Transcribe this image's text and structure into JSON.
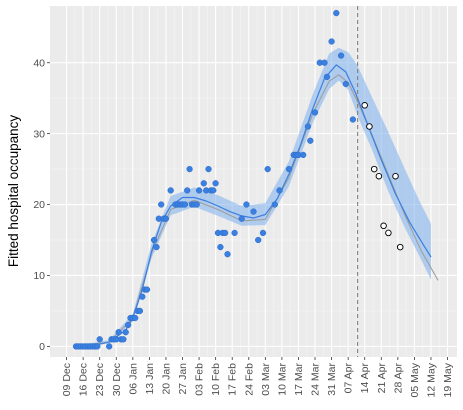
{
  "chart_data": {
    "type": "scatter",
    "ylabel": "Fitted hospital occupancy",
    "xlabel": "",
    "x_axis": {
      "type": "date",
      "range": [
        "2020-12-02",
        "2021-05-23"
      ],
      "ticks": [
        {
          "date": "2020-12-09",
          "label": "09 Dec"
        },
        {
          "date": "2020-12-16",
          "label": "16 Dec"
        },
        {
          "date": "2020-12-23",
          "label": "23 Dec"
        },
        {
          "date": "2020-12-30",
          "label": "30 Dec"
        },
        {
          "date": "2021-01-06",
          "label": "06 Jan"
        },
        {
          "date": "2021-01-13",
          "label": "13 Jan"
        },
        {
          "date": "2021-01-20",
          "label": "20 Jan"
        },
        {
          "date": "2021-01-27",
          "label": "27 Jan"
        },
        {
          "date": "2021-02-03",
          "label": "03 Feb"
        },
        {
          "date": "2021-02-10",
          "label": "10 Feb"
        },
        {
          "date": "2021-02-17",
          "label": "17 Feb"
        },
        {
          "date": "2021-02-24",
          "label": "24 Feb"
        },
        {
          "date": "2021-03-03",
          "label": "03 Mar"
        },
        {
          "date": "2021-03-10",
          "label": "10 Mar"
        },
        {
          "date": "2021-03-17",
          "label": "17 Mar"
        },
        {
          "date": "2021-03-24",
          "label": "24 Mar"
        },
        {
          "date": "2021-03-31",
          "label": "31 Mar"
        },
        {
          "date": "2021-04-07",
          "label": "07 Apr"
        },
        {
          "date": "2021-04-14",
          "label": "14 Apr"
        },
        {
          "date": "2021-04-21",
          "label": "21 Apr"
        },
        {
          "date": "2021-04-28",
          "label": "28 Apr"
        },
        {
          "date": "2021-05-05",
          "label": "05 May"
        },
        {
          "date": "2021-05-12",
          "label": "12 May"
        },
        {
          "date": "2021-05-19",
          "label": "19 May"
        }
      ]
    },
    "y_axis": {
      "range": [
        -1.5,
        48
      ],
      "ticks": [
        {
          "value": 0,
          "label": "0"
        },
        {
          "value": 10,
          "label": "10"
        },
        {
          "value": 20,
          "label": "20"
        },
        {
          "value": 30,
          "label": "30"
        },
        {
          "value": 40,
          "label": "40"
        }
      ]
    },
    "grid": true,
    "legend": "none",
    "vline": {
      "x": "2021-04-11",
      "style": "dashed",
      "color": "#808080"
    },
    "observed_points": {
      "color": "#3b7fe0",
      "points": [
        [
          "2020-12-13",
          0
        ],
        [
          "2020-12-14",
          0
        ],
        [
          "2020-12-15",
          0
        ],
        [
          "2020-12-16",
          0
        ],
        [
          "2020-12-17",
          0
        ],
        [
          "2020-12-18",
          0
        ],
        [
          "2020-12-19",
          0
        ],
        [
          "2020-12-20",
          0
        ],
        [
          "2020-12-21",
          0
        ],
        [
          "2020-12-22",
          0
        ],
        [
          "2020-12-23",
          1
        ],
        [
          "2020-12-27",
          0
        ],
        [
          "2020-12-28",
          1
        ],
        [
          "2020-12-29",
          1
        ],
        [
          "2020-12-30",
          1
        ],
        [
          "2020-12-31",
          2
        ],
        [
          "2021-01-01",
          1
        ],
        [
          "2021-01-02",
          1
        ],
        [
          "2021-01-03",
          2
        ],
        [
          "2021-01-04",
          3
        ],
        [
          "2021-01-05",
          4
        ],
        [
          "2021-01-06",
          4
        ],
        [
          "2021-01-07",
          4
        ],
        [
          "2021-01-08",
          5
        ],
        [
          "2021-01-09",
          5
        ],
        [
          "2021-01-10",
          7
        ],
        [
          "2021-01-11",
          8
        ],
        [
          "2021-01-12",
          8
        ],
        [
          "2021-01-15",
          15
        ],
        [
          "2021-01-16",
          14
        ],
        [
          "2021-01-17",
          18
        ],
        [
          "2021-01-18",
          20
        ],
        [
          "2021-01-19",
          18
        ],
        [
          "2021-01-20",
          18
        ],
        [
          "2021-01-22",
          22
        ],
        [
          "2021-01-24",
          20
        ],
        [
          "2021-01-25",
          20
        ],
        [
          "2021-01-26",
          20
        ],
        [
          "2021-01-27",
          20
        ],
        [
          "2021-01-28",
          20
        ],
        [
          "2021-01-29",
          22
        ],
        [
          "2021-01-30",
          25
        ],
        [
          "2021-01-31",
          20
        ],
        [
          "2021-02-01",
          20
        ],
        [
          "2021-02-02",
          20
        ],
        [
          "2021-02-03",
          22
        ],
        [
          "2021-02-05",
          23
        ],
        [
          "2021-02-06",
          22
        ],
        [
          "2021-02-07",
          25
        ],
        [
          "2021-02-08",
          22
        ],
        [
          "2021-02-09",
          22
        ],
        [
          "2021-02-10",
          23
        ],
        [
          "2021-02-11",
          16
        ],
        [
          "2021-02-12",
          14
        ],
        [
          "2021-02-13",
          16
        ],
        [
          "2021-02-14",
          16
        ],
        [
          "2021-02-15",
          13
        ],
        [
          "2021-02-18",
          16
        ],
        [
          "2021-02-21",
          18
        ],
        [
          "2021-02-23",
          20
        ],
        [
          "2021-02-26",
          19
        ],
        [
          "2021-02-28",
          15
        ],
        [
          "2021-03-02",
          16
        ],
        [
          "2021-03-04",
          25
        ],
        [
          "2021-03-07",
          20
        ],
        [
          "2021-03-09",
          22
        ],
        [
          "2021-03-13",
          25
        ],
        [
          "2021-03-15",
          27
        ],
        [
          "2021-03-16",
          27
        ],
        [
          "2021-03-17",
          27
        ],
        [
          "2021-03-19",
          27
        ],
        [
          "2021-03-21",
          31
        ],
        [
          "2021-03-22",
          29
        ],
        [
          "2021-03-24",
          33
        ],
        [
          "2021-03-26",
          40
        ],
        [
          "2021-03-28",
          40
        ],
        [
          "2021-03-29",
          38
        ],
        [
          "2021-03-31",
          43
        ],
        [
          "2021-04-02",
          47
        ],
        [
          "2021-04-04",
          41
        ],
        [
          "2021-04-06",
          37
        ],
        [
          "2021-04-09",
          32
        ]
      ]
    },
    "holdout_points": {
      "fill": "#ffffff",
      "stroke": "#000000",
      "points": [
        [
          "2021-04-14",
          34
        ],
        [
          "2021-04-16",
          31
        ],
        [
          "2021-04-18",
          25
        ],
        [
          "2021-04-20",
          24
        ],
        [
          "2021-04-22",
          17
        ],
        [
          "2021-04-24",
          16
        ],
        [
          "2021-04-27",
          24
        ],
        [
          "2021-04-29",
          14
        ]
      ]
    },
    "fit_line": {
      "color": "#3b7fe0",
      "points": [
        [
          "2020-12-13",
          0
        ],
        [
          "2020-12-20",
          0.1
        ],
        [
          "2020-12-27",
          0.6
        ],
        [
          "2021-01-03",
          2.3
        ],
        [
          "2021-01-06",
          4
        ],
        [
          "2021-01-10",
          8
        ],
        [
          "2021-01-14",
          13.5
        ],
        [
          "2021-01-18",
          17.5
        ],
        [
          "2021-01-22",
          19.8
        ],
        [
          "2021-01-27",
          21
        ],
        [
          "2021-02-01",
          21
        ],
        [
          "2021-02-06",
          20.5
        ],
        [
          "2021-02-11",
          19.8
        ],
        [
          "2021-02-16",
          19
        ],
        [
          "2021-02-21",
          18.4
        ],
        [
          "2021-02-26",
          18.1
        ],
        [
          "2021-03-03",
          18.6
        ],
        [
          "2021-03-08",
          20.8
        ],
        [
          "2021-03-13",
          24.3
        ],
        [
          "2021-03-18",
          28.5
        ],
        [
          "2021-03-23",
          33.5
        ],
        [
          "2021-03-28",
          37.8
        ],
        [
          "2021-04-02",
          39.7
        ],
        [
          "2021-04-06",
          38.7
        ],
        [
          "2021-04-10",
          35.8
        ],
        [
          "2021-04-15",
          31.5
        ],
        [
          "2021-04-21",
          26.3
        ],
        [
          "2021-04-27",
          21.5
        ],
        [
          "2021-05-03",
          17.5
        ],
        [
          "2021-05-09",
          14.2
        ],
        [
          "2021-05-12",
          12.6
        ]
      ]
    },
    "fit_band": {
      "color": "#7baeed",
      "lower": [
        [
          "2020-12-13",
          0
        ],
        [
          "2020-12-27",
          0.4
        ],
        [
          "2021-01-06",
          3.5
        ],
        [
          "2021-01-14",
          12.5
        ],
        [
          "2021-01-22",
          18.5
        ],
        [
          "2021-02-01",
          19.7
        ],
        [
          "2021-02-11",
          18.4
        ],
        [
          "2021-02-21",
          17
        ],
        [
          "2021-03-03",
          17.1
        ],
        [
          "2021-03-13",
          22.6
        ],
        [
          "2021-03-23",
          31.5
        ],
        [
          "2021-03-30",
          36.3
        ],
        [
          "2021-04-03",
          37.5
        ],
        [
          "2021-04-07",
          36.2
        ],
        [
          "2021-04-11",
          32.5
        ],
        [
          "2021-04-17",
          27.8
        ],
        [
          "2021-04-24",
          21.8
        ],
        [
          "2021-05-01",
          16.7
        ],
        [
          "2021-05-07",
          12.8
        ],
        [
          "2021-05-12",
          9.4
        ]
      ],
      "upper": [
        [
          "2020-12-13",
          0.1
        ],
        [
          "2020-12-27",
          0.9
        ],
        [
          "2021-01-06",
          4.6
        ],
        [
          "2021-01-14",
          14.6
        ],
        [
          "2021-01-22",
          21.2
        ],
        [
          "2021-02-01",
          22.4
        ],
        [
          "2021-02-11",
          21.3
        ],
        [
          "2021-02-21",
          19.8
        ],
        [
          "2021-03-03",
          20.2
        ],
        [
          "2021-03-13",
          26.1
        ],
        [
          "2021-03-23",
          35.5
        ],
        [
          "2021-03-30",
          41.3
        ],
        [
          "2021-04-03",
          42.1
        ],
        [
          "2021-04-07",
          41.5
        ],
        [
          "2021-04-11",
          39.6
        ],
        [
          "2021-04-17",
          35.2
        ],
        [
          "2021-04-24",
          30.2
        ],
        [
          "2021-05-01",
          25
        ],
        [
          "2021-05-07",
          20.6
        ],
        [
          "2021-05-12",
          17.3
        ]
      ]
    },
    "reference_line": {
      "color": "#9e9e9e",
      "points": [
        [
          "2020-12-13",
          0
        ],
        [
          "2020-12-27",
          0.6
        ],
        [
          "2021-01-06",
          4
        ],
        [
          "2021-01-14",
          13.2
        ],
        [
          "2021-01-22",
          19.3
        ],
        [
          "2021-02-01",
          20.6
        ],
        [
          "2021-02-11",
          19.3
        ],
        [
          "2021-02-21",
          17.7
        ],
        [
          "2021-03-03",
          17.9
        ],
        [
          "2021-03-13",
          23.8
        ],
        [
          "2021-03-23",
          32.8
        ],
        [
          "2021-03-30",
          37.4
        ],
        [
          "2021-04-03",
          38.3
        ],
        [
          "2021-04-07",
          37.2
        ],
        [
          "2021-04-11",
          34.5
        ],
        [
          "2021-04-17",
          29.9
        ],
        [
          "2021-04-24",
          24.2
        ],
        [
          "2021-05-01",
          18.5
        ],
        [
          "2021-05-08",
          13.4
        ],
        [
          "2021-05-15",
          9.3
        ]
      ]
    }
  }
}
